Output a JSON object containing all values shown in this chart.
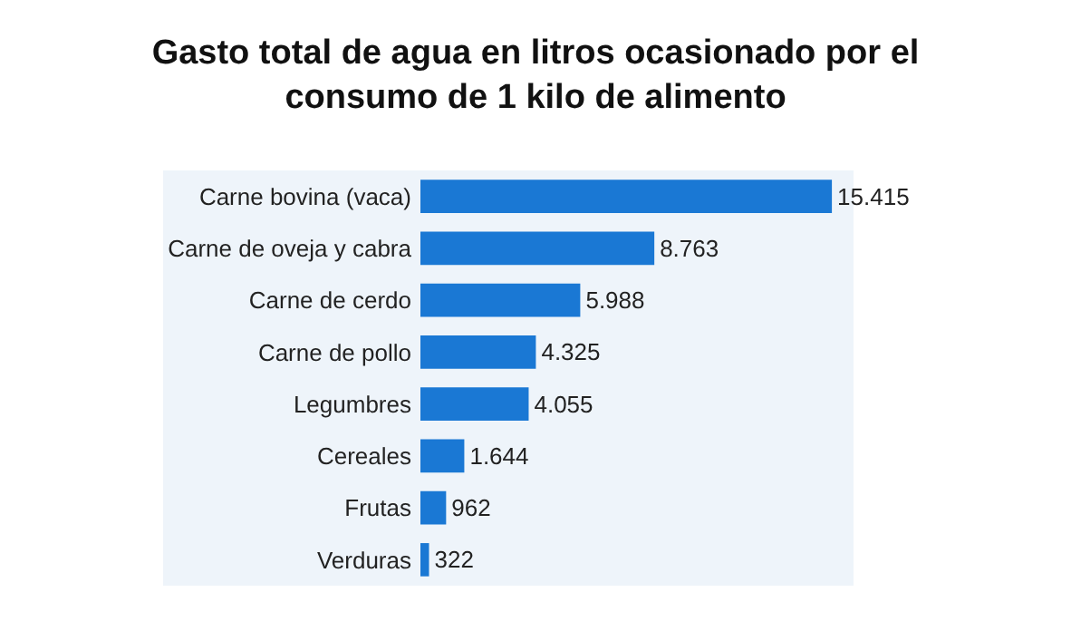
{
  "chart_data": {
    "type": "bar",
    "orientation": "horizontal",
    "title": "Gasto total de agua en litros ocasionado por el\nconsumo de 1 kilo de alimento",
    "categories": [
      "Carne bovina (vaca)",
      "Carne de oveja y cabra",
      "Carne de cerdo",
      "Carne de pollo",
      "Legumbres",
      "Cereales",
      "Frutas",
      "Verduras"
    ],
    "values": [
      15415,
      8763,
      5988,
      4325,
      4055,
      1644,
      962,
      322
    ],
    "value_labels": [
      "15.415",
      "8.763",
      "5.988",
      "4.325",
      "4.055",
      "1.644",
      "962",
      "322"
    ],
    "color": "#1a78d4",
    "grid": false
  }
}
